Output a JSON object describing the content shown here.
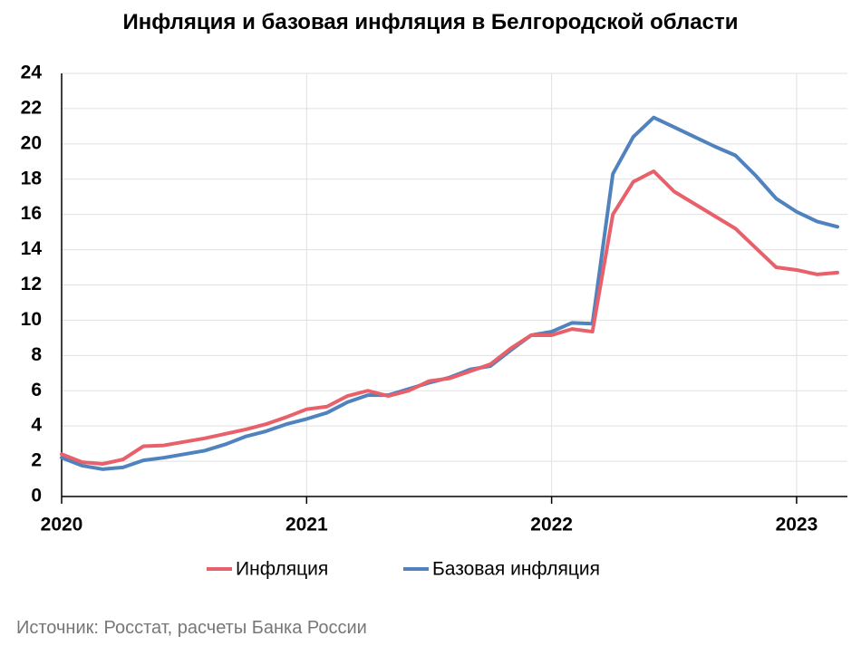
{
  "chart_data": {
    "type": "line",
    "title": "Инфляция и базовая инфляция в Белгородской области",
    "source": "Источник: Росстат, расчеты Банка России",
    "categories": [
      "2020",
      null,
      null,
      null,
      null,
      null,
      null,
      null,
      null,
      null,
      null,
      null,
      "2021",
      null,
      null,
      null,
      null,
      null,
      null,
      null,
      null,
      null,
      null,
      null,
      "2022",
      null,
      null,
      null,
      null,
      null,
      null,
      null,
      null,
      null,
      null,
      null,
      "2023",
      null,
      null
    ],
    "series": [
      {
        "name": "Инфляция",
        "color": "#e8606a",
        "values": [
          2.4,
          1.95,
          1.85,
          2.1,
          2.85,
          2.9,
          3.1,
          3.3,
          3.55,
          3.8,
          4.1,
          4.5,
          4.95,
          5.1,
          5.7,
          6.0,
          5.7,
          6.0,
          6.55,
          6.7,
          7.1,
          7.5,
          8.4,
          9.15,
          9.15,
          9.5,
          9.35,
          16.0,
          17.85,
          18.45,
          17.3,
          16.6,
          15.9,
          15.2,
          14.1,
          13.0,
          12.85,
          12.6,
          12.7
        ]
      },
      {
        "name": "Базовая инфляция",
        "color": "#5082be",
        "values": [
          2.2,
          1.75,
          1.55,
          1.65,
          2.05,
          2.2,
          2.4,
          2.6,
          2.95,
          3.4,
          3.7,
          4.1,
          4.4,
          4.75,
          5.35,
          5.75,
          5.75,
          6.1,
          6.45,
          6.75,
          7.2,
          7.4,
          8.3,
          9.15,
          9.35,
          9.85,
          9.8,
          18.3,
          20.4,
          21.5,
          20.95,
          20.4,
          19.85,
          19.35,
          18.2,
          16.9,
          16.15,
          15.6,
          15.3
        ]
      }
    ],
    "ylim": [
      0,
      24
    ],
    "yticks": [
      0,
      2,
      4,
      6,
      8,
      10,
      12,
      14,
      16,
      18,
      20,
      22,
      24
    ],
    "grid": true,
    "legend": "bottom"
  }
}
